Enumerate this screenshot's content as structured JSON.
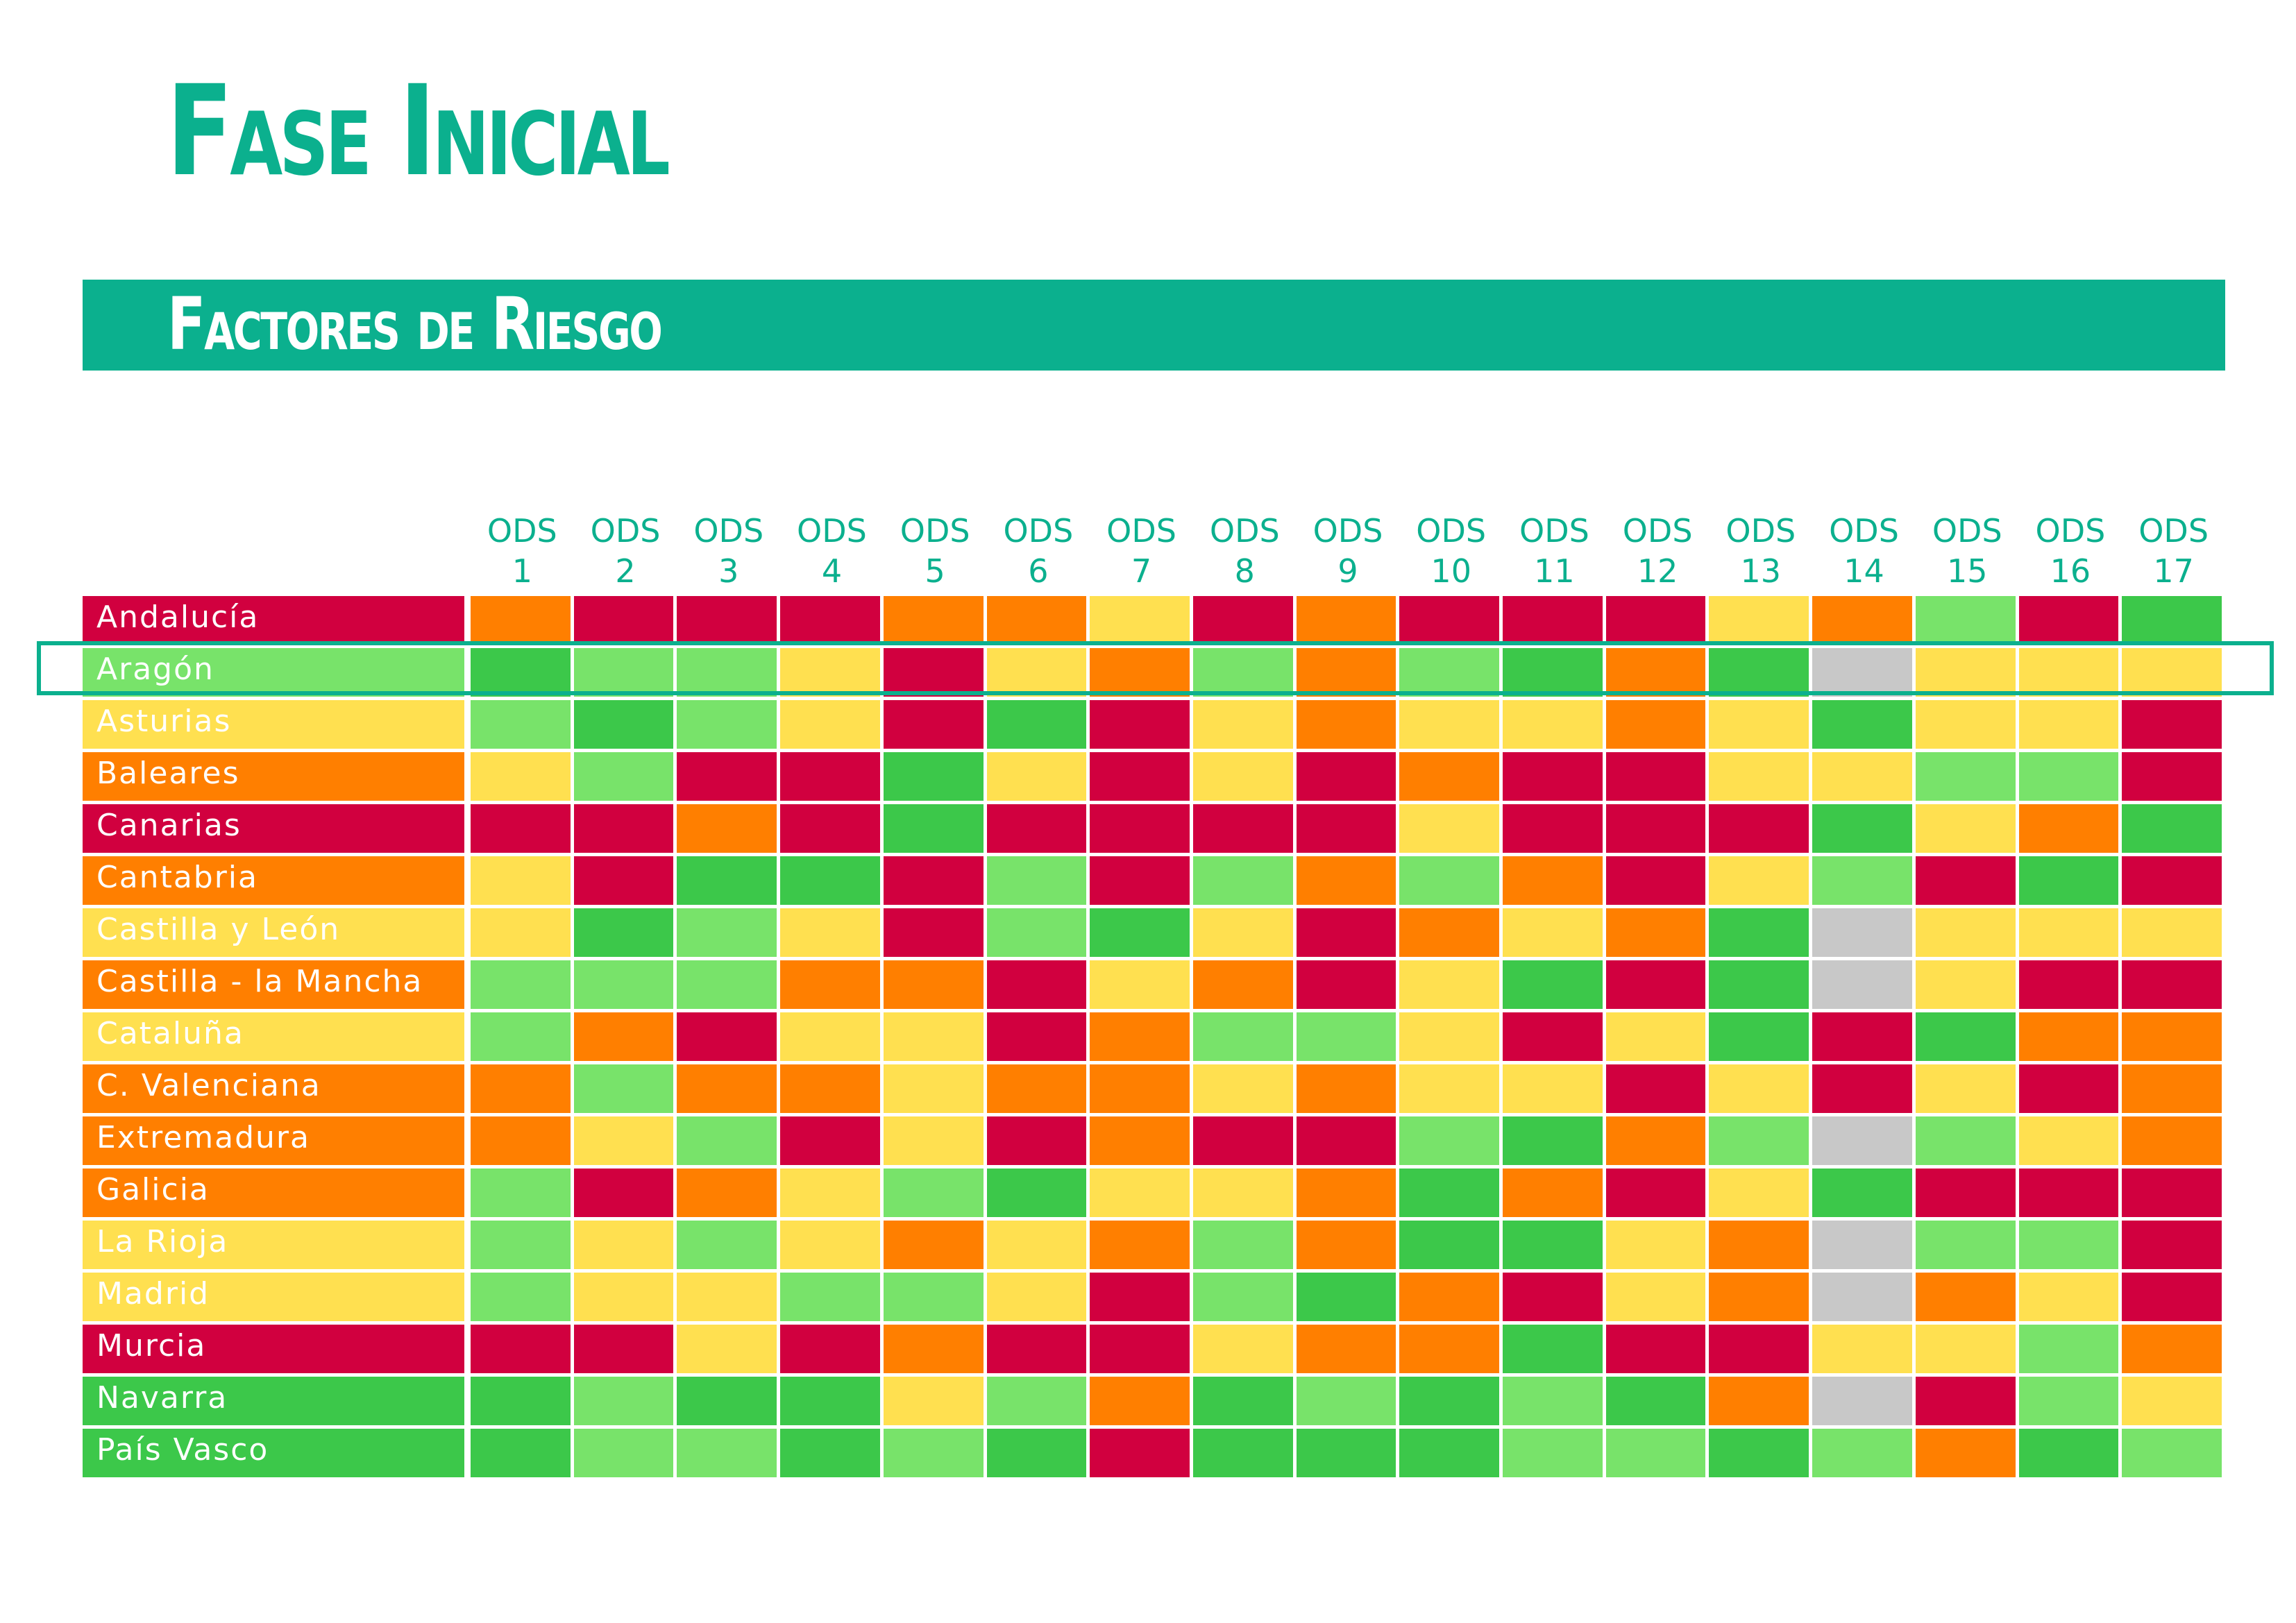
{
  "header": {
    "title": "Fase Inicial",
    "subtitle": "Factores de Riesgo"
  },
  "table": {
    "columns": [
      "ODS 1",
      "ODS 2",
      "ODS 3",
      "ODS 4",
      "ODS 5",
      "ODS 6",
      "ODS 7",
      "ODS 8",
      "ODS 9",
      "ODS 10",
      "ODS 11",
      "ODS 12",
      "ODS 13",
      "ODS 14",
      "ODS 15",
      "ODS 16",
      "ODS 17"
    ],
    "highlight_row": 1,
    "rows": [
      {
        "label": "Andalucía",
        "color": "#d1003f",
        "cells": [
          "#ff7f00",
          "#d1003f",
          "#d1003f",
          "#d1003f",
          "#ff7f00",
          "#ff7f00",
          "#ffe050",
          "#d1003f",
          "#ff7f00",
          "#d1003f",
          "#d1003f",
          "#d1003f",
          "#ffe050",
          "#ff7f00",
          "#78e36a",
          "#d1003f",
          "#3cc84a"
        ]
      },
      {
        "label": "Aragón",
        "color": "#78e36a",
        "cells": [
          "#3cc84a",
          "#78e36a",
          "#78e36a",
          "#ffe050",
          "#d1003f",
          "#ffe050",
          "#ff7f00",
          "#78e36a",
          "#ff7f00",
          "#78e36a",
          "#3cc84a",
          "#ff7f00",
          "#3cc84a",
          "#c8c8c8",
          "#ffe050",
          "#ffe050",
          "#ffe050"
        ]
      },
      {
        "label": "Asturias",
        "color": "#ffe050",
        "cells": [
          "#78e36a",
          "#3cc84a",
          "#78e36a",
          "#ffe050",
          "#d1003f",
          "#3cc84a",
          "#d1003f",
          "#ffe050",
          "#ff7f00",
          "#ffe050",
          "#ffe050",
          "#ff7f00",
          "#ffe050",
          "#3cc84a",
          "#ffe050",
          "#ffe050",
          "#d1003f"
        ]
      },
      {
        "label": "Baleares",
        "color": "#ff7f00",
        "cells": [
          "#ffe050",
          "#78e36a",
          "#d1003f",
          "#d1003f",
          "#3cc84a",
          "#ffe050",
          "#d1003f",
          "#ffe050",
          "#d1003f",
          "#ff7f00",
          "#d1003f",
          "#d1003f",
          "#ffe050",
          "#ffe050",
          "#78e36a",
          "#78e36a",
          "#d1003f"
        ]
      },
      {
        "label": "Canarias",
        "color": "#d1003f",
        "cells": [
          "#d1003f",
          "#d1003f",
          "#ff7f00",
          "#d1003f",
          "#3cc84a",
          "#d1003f",
          "#d1003f",
          "#d1003f",
          "#d1003f",
          "#ffe050",
          "#d1003f",
          "#d1003f",
          "#d1003f",
          "#3cc84a",
          "#ffe050",
          "#ff7f00",
          "#3cc84a"
        ]
      },
      {
        "label": "Cantabria",
        "color": "#ff7f00",
        "cells": [
          "#ffe050",
          "#d1003f",
          "#3cc84a",
          "#3cc84a",
          "#d1003f",
          "#78e36a",
          "#d1003f",
          "#78e36a",
          "#ff7f00",
          "#78e36a",
          "#ff7f00",
          "#d1003f",
          "#ffe050",
          "#78e36a",
          "#d1003f",
          "#3cc84a",
          "#d1003f"
        ]
      },
      {
        "label": "Castilla y León",
        "color": "#ffe050",
        "cells": [
          "#ffe050",
          "#3cc84a",
          "#78e36a",
          "#ffe050",
          "#d1003f",
          "#78e36a",
          "#3cc84a",
          "#ffe050",
          "#d1003f",
          "#ff7f00",
          "#ffe050",
          "#ff7f00",
          "#3cc84a",
          "#c8c8c8",
          "#ffe050",
          "#ffe050",
          "#ffe050"
        ]
      },
      {
        "label": "Castilla - la Mancha",
        "color": "#ff7f00",
        "cells": [
          "#78e36a",
          "#78e36a",
          "#78e36a",
          "#ff7f00",
          "#ff7f00",
          "#d1003f",
          "#ffe050",
          "#ff7f00",
          "#d1003f",
          "#ffe050",
          "#3cc84a",
          "#d1003f",
          "#3cc84a",
          "#c8c8c8",
          "#ffe050",
          "#d1003f",
          "#d1003f"
        ]
      },
      {
        "label": "Cataluña",
        "color": "#ffe050",
        "cells": [
          "#78e36a",
          "#ff7f00",
          "#d1003f",
          "#ffe050",
          "#ffe050",
          "#d1003f",
          "#ff7f00",
          "#78e36a",
          "#78e36a",
          "#ffe050",
          "#d1003f",
          "#ffe050",
          "#3cc84a",
          "#d1003f",
          "#3cc84a",
          "#ff7f00",
          "#ff7f00"
        ]
      },
      {
        "label": "C. Valenciana",
        "color": "#ff7f00",
        "cells": [
          "#ff7f00",
          "#78e36a",
          "#ff7f00",
          "#ff7f00",
          "#ffe050",
          "#ff7f00",
          "#ff7f00",
          "#ffe050",
          "#ff7f00",
          "#ffe050",
          "#ffe050",
          "#d1003f",
          "#ffe050",
          "#d1003f",
          "#ffe050",
          "#d1003f",
          "#ff7f00"
        ]
      },
      {
        "label": "Extremadura",
        "color": "#ff7f00",
        "cells": [
          "#ff7f00",
          "#ffe050",
          "#78e36a",
          "#d1003f",
          "#ffe050",
          "#d1003f",
          "#ff7f00",
          "#d1003f",
          "#d1003f",
          "#78e36a",
          "#3cc84a",
          "#ff7f00",
          "#78e36a",
          "#c8c8c8",
          "#78e36a",
          "#ffe050",
          "#ff7f00"
        ]
      },
      {
        "label": "Galicia",
        "color": "#ff7f00",
        "cells": [
          "#78e36a",
          "#d1003f",
          "#ff7f00",
          "#ffe050",
          "#78e36a",
          "#3cc84a",
          "#ffe050",
          "#ffe050",
          "#ff7f00",
          "#3cc84a",
          "#ff7f00",
          "#d1003f",
          "#ffe050",
          "#3cc84a",
          "#d1003f",
          "#d1003f",
          "#d1003f"
        ]
      },
      {
        "label": "La Rioja",
        "color": "#ffe050",
        "cells": [
          "#78e36a",
          "#ffe050",
          "#78e36a",
          "#ffe050",
          "#ff7f00",
          "#ffe050",
          "#ff7f00",
          "#78e36a",
          "#ff7f00",
          "#3cc84a",
          "#3cc84a",
          "#ffe050",
          "#ff7f00",
          "#c8c8c8",
          "#78e36a",
          "#78e36a",
          "#d1003f"
        ]
      },
      {
        "label": "Madrid",
        "color": "#ffe050",
        "cells": [
          "#78e36a",
          "#ffe050",
          "#ffe050",
          "#78e36a",
          "#78e36a",
          "#ffe050",
          "#d1003f",
          "#78e36a",
          "#3cc84a",
          "#ff7f00",
          "#d1003f",
          "#ffe050",
          "#ff7f00",
          "#c8c8c8",
          "#ff7f00",
          "#ffe050",
          "#d1003f"
        ]
      },
      {
        "label": "Murcia",
        "color": "#d1003f",
        "cells": [
          "#d1003f",
          "#d1003f",
          "#ffe050",
          "#d1003f",
          "#ff7f00",
          "#d1003f",
          "#d1003f",
          "#ffe050",
          "#ff7f00",
          "#ff7f00",
          "#3cc84a",
          "#d1003f",
          "#d1003f",
          "#ffe050",
          "#ffe050",
          "#78e36a",
          "#ff7f00"
        ]
      },
      {
        "label": "Navarra",
        "color": "#3cc84a",
        "cells": [
          "#3cc84a",
          "#78e36a",
          "#3cc84a",
          "#3cc84a",
          "#ffe050",
          "#78e36a",
          "#ff7f00",
          "#3cc84a",
          "#78e36a",
          "#3cc84a",
          "#78e36a",
          "#3cc84a",
          "#ff7f00",
          "#c8c8c8",
          "#d1003f",
          "#78e36a",
          "#ffe050"
        ]
      },
      {
        "label": "País Vasco",
        "color": "#3cc84a",
        "cells": [
          "#3cc84a",
          "#78e36a",
          "#78e36a",
          "#3cc84a",
          "#78e36a",
          "#3cc84a",
          "#d1003f",
          "#3cc84a",
          "#3cc84a",
          "#3cc84a",
          "#78e36a",
          "#78e36a",
          "#3cc84a",
          "#78e36a",
          "#ff7f00",
          "#3cc84a",
          "#78e36a"
        ]
      }
    ]
  }
}
